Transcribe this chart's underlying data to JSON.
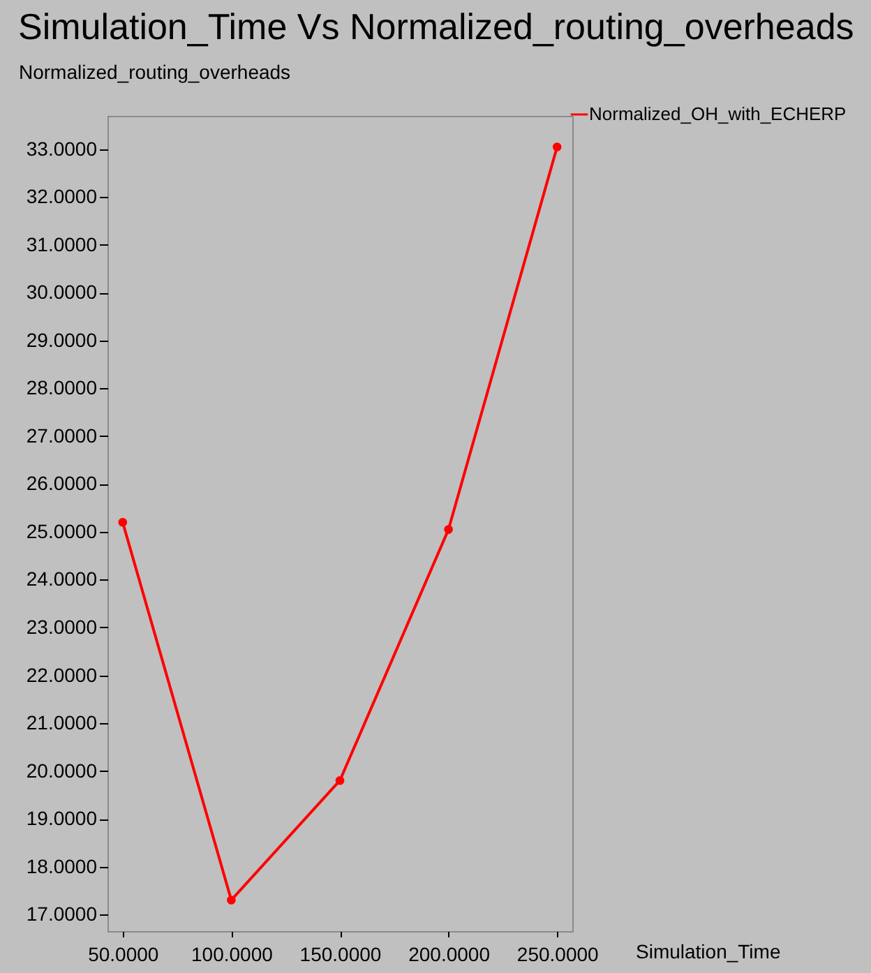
{
  "chart_data": {
    "type": "line",
    "title": "Simulation_Time Vs Normalized_routing_overheads",
    "xlabel": "Simulation_Time",
    "ylabel": "Normalized_routing_overheads",
    "x": [
      50,
      100,
      150,
      200,
      250
    ],
    "series": [
      {
        "name": "Normalized_OH_with_ECHERP",
        "color": "#ff0000",
        "values": [
          25.2,
          17.3,
          19.8,
          25.05,
          33.05
        ]
      }
    ],
    "xlim": [
      43,
      257
    ],
    "ylim": [
      16.65,
      33.7
    ],
    "xticks": [
      {
        "value": 50,
        "label": "50.0000"
      },
      {
        "value": 100,
        "label": "100.0000"
      },
      {
        "value": 150,
        "label": "150.0000"
      },
      {
        "value": 200,
        "label": "200.0000"
      },
      {
        "value": 250,
        "label": "250.0000"
      }
    ],
    "yticks": [
      {
        "value": 17,
        "label": "17.0000"
      },
      {
        "value": 18,
        "label": "18.0000"
      },
      {
        "value": 19,
        "label": "19.0000"
      },
      {
        "value": 20,
        "label": "20.0000"
      },
      {
        "value": 21,
        "label": "21.0000"
      },
      {
        "value": 22,
        "label": "22.0000"
      },
      {
        "value": 23,
        "label": "23.0000"
      },
      {
        "value": 24,
        "label": "24.0000"
      },
      {
        "value": 25,
        "label": "25.0000"
      },
      {
        "value": 26,
        "label": "26.0000"
      },
      {
        "value": 27,
        "label": "27.0000"
      },
      {
        "value": 28,
        "label": "28.0000"
      },
      {
        "value": 29,
        "label": "29.0000"
      },
      {
        "value": 30,
        "label": "30.0000"
      },
      {
        "value": 31,
        "label": "31.0000"
      },
      {
        "value": 32,
        "label": "32.0000"
      },
      {
        "value": 33,
        "label": "33.0000"
      }
    ],
    "grid": false,
    "legend": "top right",
    "marker": "circle",
    "line_style": "solid"
  }
}
